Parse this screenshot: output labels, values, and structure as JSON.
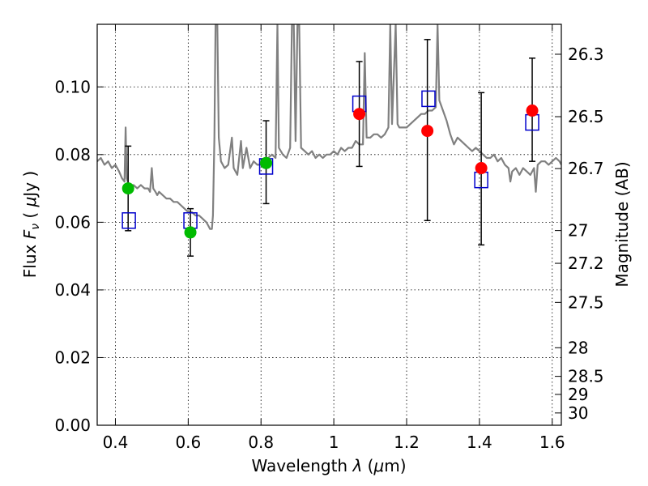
{
  "chart_data": {
    "type": "scatter",
    "title": "",
    "xlabel": "Wavelength  λ (μm)",
    "ylabel": "Flux  F_ν  ( μJy )",
    "ylabel_parts": {
      "pre": "Flux  ",
      "sym": "F",
      "sub": "ν",
      "mid": "  ( ",
      "mu": "μ",
      "post": "Jy )"
    },
    "xlabel_parts": {
      "pre": "Wavelength  ",
      "lam": "λ",
      "mid": " (",
      "mu": "μ",
      "post": "m)"
    },
    "y2label": "Magnitude (AB)",
    "xlim": [
      0.35,
      1.625
    ],
    "ylim": [
      0.0,
      0.1185
    ],
    "grid": true,
    "xticks": [
      0.4,
      0.6,
      0.8,
      1.0,
      1.2,
      1.4,
      1.6
    ],
    "xtick_labels": [
      "0.4",
      "0.6",
      "0.8",
      "1",
      "1.2",
      "1.4",
      "1.6"
    ],
    "yticks": [
      0.0,
      0.02,
      0.04,
      0.06,
      0.08,
      0.1
    ],
    "ytick_labels": [
      "0.00",
      "0.02",
      "0.04",
      "0.06",
      "0.08",
      "0.10"
    ],
    "mag_ticks": [
      26.3,
      26.5,
      26.7,
      27,
      27.2,
      27.5,
      28,
      28.5,
      29,
      30
    ],
    "mag_tick_labels": [
      "26.3",
      "26.5",
      "26.7",
      "27",
      "27.2",
      "27.5",
      "28",
      "28.5",
      "29",
      "30"
    ],
    "colors": {
      "spectrum": "#808080",
      "model": "#0000cc",
      "green": "#00bb00",
      "red": "#ff0000",
      "errorbar": "#000000"
    },
    "spectrum": [
      [
        0.35,
        0.078
      ],
      [
        0.36,
        0.079
      ],
      [
        0.37,
        0.077
      ],
      [
        0.38,
        0.078
      ],
      [
        0.39,
        0.076
      ],
      [
        0.4,
        0.077
      ],
      [
        0.41,
        0.075
      ],
      [
        0.418,
        0.073
      ],
      [
        0.425,
        0.072
      ],
      [
        0.428,
        0.088
      ],
      [
        0.431,
        0.073
      ],
      [
        0.44,
        0.07
      ],
      [
        0.45,
        0.071
      ],
      [
        0.46,
        0.07
      ],
      [
        0.47,
        0.071
      ],
      [
        0.48,
        0.07
      ],
      [
        0.49,
        0.07
      ],
      [
        0.495,
        0.069
      ],
      [
        0.5,
        0.076
      ],
      [
        0.504,
        0.07
      ],
      [
        0.51,
        0.069
      ],
      [
        0.515,
        0.068
      ],
      [
        0.52,
        0.069
      ],
      [
        0.53,
        0.068
      ],
      [
        0.54,
        0.067
      ],
      [
        0.55,
        0.067
      ],
      [
        0.56,
        0.066
      ],
      [
        0.57,
        0.066
      ],
      [
        0.58,
        0.065
      ],
      [
        0.59,
        0.064
      ],
      [
        0.6,
        0.063
      ],
      [
        0.61,
        0.063
      ],
      [
        0.62,
        0.062
      ],
      [
        0.63,
        0.062
      ],
      [
        0.64,
        0.061
      ],
      [
        0.65,
        0.06
      ],
      [
        0.655,
        0.059
      ],
      [
        0.66,
        0.058
      ],
      [
        0.665,
        0.058
      ],
      [
        0.668,
        0.062
      ],
      [
        0.672,
        0.085
      ],
      [
        0.675,
        0.1185
      ],
      [
        0.68,
        0.1185
      ],
      [
        0.684,
        0.085
      ],
      [
        0.69,
        0.078
      ],
      [
        0.7,
        0.076
      ],
      [
        0.71,
        0.077
      ],
      [
        0.72,
        0.085
      ],
      [
        0.725,
        0.076
      ],
      [
        0.735,
        0.074
      ],
      [
        0.745,
        0.084
      ],
      [
        0.75,
        0.076
      ],
      [
        0.76,
        0.082
      ],
      [
        0.77,
        0.076
      ],
      [
        0.78,
        0.078
      ],
      [
        0.79,
        0.077
      ],
      [
        0.8,
        0.077
      ],
      [
        0.81,
        0.078
      ],
      [
        0.82,
        0.079
      ],
      [
        0.83,
        0.08
      ],
      [
        0.84,
        0.079
      ],
      [
        0.845,
        0.1185
      ],
      [
        0.849,
        0.082
      ],
      [
        0.86,
        0.08
      ],
      [
        0.87,
        0.079
      ],
      [
        0.88,
        0.082
      ],
      [
        0.885,
        0.1185
      ],
      [
        0.89,
        0.1185
      ],
      [
        0.895,
        0.084
      ],
      [
        0.9,
        0.1185
      ],
      [
        0.905,
        0.1185
      ],
      [
        0.91,
        0.082
      ],
      [
        0.92,
        0.081
      ],
      [
        0.93,
        0.08
      ],
      [
        0.94,
        0.081
      ],
      [
        0.95,
        0.079
      ],
      [
        0.96,
        0.08
      ],
      [
        0.97,
        0.079
      ],
      [
        0.98,
        0.08
      ],
      [
        0.99,
        0.08
      ],
      [
        1.0,
        0.081
      ],
      [
        1.01,
        0.08
      ],
      [
        1.02,
        0.082
      ],
      [
        1.03,
        0.081
      ],
      [
        1.04,
        0.082
      ],
      [
        1.05,
        0.082
      ],
      [
        1.06,
        0.084
      ],
      [
        1.07,
        0.083
      ],
      [
        1.08,
        0.083
      ],
      [
        1.085,
        0.11
      ],
      [
        1.09,
        0.085
      ],
      [
        1.1,
        0.085
      ],
      [
        1.11,
        0.086
      ],
      [
        1.12,
        0.086
      ],
      [
        1.13,
        0.085
      ],
      [
        1.14,
        0.086
      ],
      [
        1.15,
        0.088
      ],
      [
        1.155,
        0.1185
      ],
      [
        1.16,
        0.089
      ],
      [
        1.17,
        0.1185
      ],
      [
        1.175,
        0.089
      ],
      [
        1.18,
        0.088
      ],
      [
        1.19,
        0.088
      ],
      [
        1.2,
        0.088
      ],
      [
        1.21,
        0.089
      ],
      [
        1.22,
        0.09
      ],
      [
        1.23,
        0.091
      ],
      [
        1.24,
        0.092
      ],
      [
        1.25,
        0.092
      ],
      [
        1.26,
        0.093
      ],
      [
        1.27,
        0.093
      ],
      [
        1.28,
        0.094
      ],
      [
        1.285,
        0.1185
      ],
      [
        1.29,
        0.096
      ],
      [
        1.3,
        0.093
      ],
      [
        1.31,
        0.09
      ],
      [
        1.32,
        0.086
      ],
      [
        1.33,
        0.083
      ],
      [
        1.34,
        0.085
      ],
      [
        1.35,
        0.084
      ],
      [
        1.36,
        0.083
      ],
      [
        1.37,
        0.082
      ],
      [
        1.38,
        0.081
      ],
      [
        1.39,
        0.082
      ],
      [
        1.4,
        0.081
      ],
      [
        1.41,
        0.08
      ],
      [
        1.42,
        0.079
      ],
      [
        1.43,
        0.079
      ],
      [
        1.44,
        0.08
      ],
      [
        1.45,
        0.078
      ],
      [
        1.46,
        0.079
      ],
      [
        1.47,
        0.077
      ],
      [
        1.48,
        0.076
      ],
      [
        1.485,
        0.072
      ],
      [
        1.49,
        0.075
      ],
      [
        1.5,
        0.076
      ],
      [
        1.51,
        0.074
      ],
      [
        1.52,
        0.076
      ],
      [
        1.53,
        0.075
      ],
      [
        1.54,
        0.074
      ],
      [
        1.55,
        0.076
      ],
      [
        1.555,
        0.069
      ],
      [
        1.56,
        0.077
      ],
      [
        1.57,
        0.078
      ],
      [
        1.58,
        0.078
      ],
      [
        1.59,
        0.077
      ],
      [
        1.6,
        0.078
      ],
      [
        1.61,
        0.079
      ],
      [
        1.62,
        0.078
      ],
      [
        1.625,
        0.077
      ]
    ],
    "model_points": [
      {
        "x": 0.437,
        "y": 0.0605
      },
      {
        "x": 0.606,
        "y": 0.0605
      },
      {
        "x": 0.814,
        "y": 0.0765
      },
      {
        "x": 1.07,
        "y": 0.095
      },
      {
        "x": 1.26,
        "y": 0.0965
      },
      {
        "x": 1.405,
        "y": 0.0725
      },
      {
        "x": 1.545,
        "y": 0.0895
      }
    ],
    "observed_points": [
      {
        "x": 0.435,
        "y": 0.07,
        "err": [
          0.0575,
          0.0825
        ],
        "color": "green"
      },
      {
        "x": 0.606,
        "y": 0.057,
        "err": [
          0.05,
          0.064
        ],
        "color": "green"
      },
      {
        "x": 0.814,
        "y": 0.0775,
        "err": [
          0.0655,
          0.09
        ],
        "color": "green"
      },
      {
        "x": 1.07,
        "y": 0.092,
        "err": [
          0.0765,
          0.1075
        ],
        "color": "red"
      },
      {
        "x": 1.257,
        "y": 0.087,
        "err": [
          0.0605,
          0.114
        ],
        "color": "red"
      },
      {
        "x": 1.405,
        "y": 0.076,
        "err": [
          0.0533,
          0.0983
        ],
        "color": "red"
      },
      {
        "x": 1.545,
        "y": 0.093,
        "err": [
          0.078,
          0.1085
        ],
        "color": "red"
      }
    ]
  }
}
